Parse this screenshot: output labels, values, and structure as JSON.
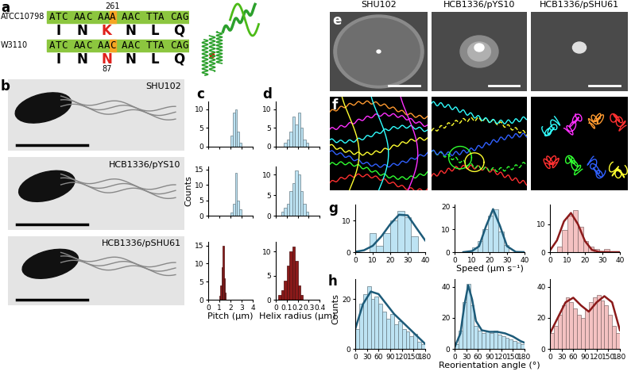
{
  "panel_labels": [
    "a",
    "b",
    "c",
    "d",
    "e",
    "f",
    "g",
    "h"
  ],
  "strains": [
    "SHU102",
    "HCB1336/pYS10",
    "HCB1336/pSHU61"
  ],
  "sequence_alignment": {
    "rows": [
      {
        "strain": "ATCC10798",
        "codons": [
          "ATC",
          "AAC",
          "AAA",
          "AAC",
          "TTA",
          "CAG"
        ],
        "residues": [
          "I",
          "N",
          "K",
          "N",
          "L",
          "Q"
        ],
        "position": 261
      },
      {
        "strain": "W3110",
        "codons": [
          "ATC",
          "AAC",
          "AAC",
          "AAC",
          "TTA",
          "CAG"
        ],
        "residues": [
          "I",
          "N",
          "N",
          "N",
          "L",
          "Q"
        ],
        "position": 87
      }
    ]
  },
  "shared_ylabel": "Counts",
  "chart_data": [
    {
      "type": "histogram",
      "bins": [
        2.0,
        2.2,
        2.4,
        2.6,
        2.8,
        3.0
      ],
      "counts": [
        3,
        9,
        10,
        4,
        1
      ],
      "color": "#bde3f3",
      "xlim": [
        0,
        4
      ],
      "xticks": [
        0,
        1,
        2,
        3,
        4
      ],
      "ylim": [
        0,
        12
      ],
      "yticks": [
        0,
        5,
        10
      ],
      "tick_labels": "y"
    },
    {
      "type": "histogram",
      "bins": [
        2.0,
        2.2,
        2.4,
        2.6,
        2.8,
        3.0
      ],
      "counts": [
        1,
        4,
        14,
        5,
        2
      ],
      "color": "#bde3f3",
      "xlim": [
        0,
        4
      ],
      "xticks": [
        0,
        1,
        2,
        3,
        4
      ],
      "ylim": [
        0,
        16
      ],
      "yticks": [
        0,
        5,
        10,
        15
      ],
      "tick_labels": "y",
      "ylabel": "Counts"
    },
    {
      "type": "histogram",
      "bins": [
        1.0,
        1.1,
        1.2,
        1.3,
        1.4,
        1.5,
        1.6
      ],
      "counts": [
        1,
        4,
        9,
        15,
        6,
        2
      ],
      "color": "#8b1a1a",
      "xlim": [
        0,
        4
      ],
      "xticks": [
        0,
        1,
        2,
        3,
        4
      ],
      "ylim": [
        0,
        16
      ],
      "yticks": [
        0,
        5,
        10,
        15
      ],
      "xlabel": "Pitch (μm)"
    },
    {
      "type": "histogram",
      "bins": [
        0.075,
        0.1,
        0.125,
        0.15,
        0.175,
        0.2,
        0.225,
        0.25,
        0.275,
        0.3
      ],
      "counts": [
        1,
        2,
        4,
        8,
        6,
        9,
        5,
        2,
        1
      ],
      "color": "#bde3f3",
      "xlim": [
        0,
        0.4
      ],
      "xticks": [
        0,
        0.1,
        0.2,
        0.3,
        0.4
      ],
      "ylim": [
        0,
        12
      ],
      "yticks": [
        0,
        5,
        10
      ],
      "tick_labels": "y"
    },
    {
      "type": "histogram",
      "bins": [
        0.05,
        0.075,
        0.1,
        0.125,
        0.15,
        0.175,
        0.2,
        0.225,
        0.25,
        0.275,
        0.3
      ],
      "counts": [
        1,
        2,
        3,
        6,
        8,
        11,
        10,
        6,
        3,
        1
      ],
      "color": "#bde3f3",
      "xlim": [
        0,
        0.4
      ],
      "xticks": [
        0,
        0.1,
        0.2,
        0.3,
        0.4
      ],
      "ylim": [
        0,
        12
      ],
      "yticks": [
        0,
        5,
        10
      ],
      "tick_labels": "y"
    },
    {
      "type": "histogram",
      "bins": [
        0.025,
        0.05,
        0.075,
        0.1,
        0.125,
        0.15,
        0.175,
        0.2,
        0.225,
        0.25
      ],
      "counts": [
        1,
        2,
        4,
        7,
        10,
        11,
        8,
        3,
        1
      ],
      "color": "#8b1a1a",
      "xlim": [
        0,
        0.4
      ],
      "xticks": [
        0,
        0.1,
        0.2,
        0.3,
        0.4
      ],
      "ylim": [
        0,
        12
      ],
      "yticks": [
        0,
        5,
        10
      ],
      "xlabel": "Helix radius (μm)"
    },
    {
      "type": "histogram",
      "bins": [
        8,
        12,
        16,
        20,
        24,
        28,
        32,
        36
      ],
      "counts": [
        6,
        2,
        6,
        10,
        13,
        11,
        5
      ],
      "color": "#bde3f3",
      "xlim": [
        0,
        40
      ],
      "xticks": [
        0,
        10,
        20,
        30,
        40
      ],
      "ylim": [
        0,
        15
      ],
      "yticks": [
        0,
        10
      ],
      "fit": {
        "type": "line",
        "x": [
          0,
          5,
          10,
          15,
          20,
          25,
          30,
          35,
          40
        ],
        "values": [
          0.1,
          0.6,
          2.0,
          5.0,
          8.8,
          11.8,
          11.6,
          7.6,
          3.7
        ],
        "color": "#1d5b79"
      }
    },
    {
      "type": "histogram",
      "bins": [
        10,
        13,
        16,
        19,
        22,
        25,
        28,
        31
      ],
      "counts": [
        2,
        5,
        10,
        16,
        19,
        9,
        3
      ],
      "color": "#bde3f3",
      "xlim": [
        0,
        40
      ],
      "xticks": [
        0,
        10,
        20,
        30,
        40
      ],
      "ylim": [
        0,
        21
      ],
      "yticks": [
        0,
        10,
        20
      ],
      "xlabel": "Speed (μm s⁻¹)",
      "fit": {
        "type": "line",
        "x": [
          5,
          10,
          14,
          18,
          22,
          26,
          30,
          35,
          40
        ],
        "values": [
          0,
          0.5,
          2.6,
          11.5,
          19,
          11.5,
          2.6,
          0.1,
          0
        ],
        "color": "#1d5b79"
      }
    },
    {
      "type": "histogram",
      "bins": [
        4,
        7,
        10,
        13,
        16,
        19,
        22,
        25,
        28,
        31,
        34
      ],
      "counts": [
        2,
        8,
        13,
        15,
        9,
        4,
        2,
        1,
        0,
        1
      ],
      "color": "#f4c2c2",
      "xlim": [
        0,
        40
      ],
      "xticks": [
        0,
        10,
        20,
        30,
        40
      ],
      "ylim": [
        0,
        17
      ],
      "yticks": [
        0,
        10
      ],
      "fit": {
        "type": "line",
        "x": [
          0,
          4,
          8,
          12,
          16,
          20,
          24,
          28,
          32,
          40
        ],
        "values": [
          0.6,
          4.2,
          11,
          14,
          10,
          4,
          0.8,
          0.1,
          0,
          0
        ],
        "color": "#8b1a1a"
      }
    },
    {
      "type": "histogram",
      "bins": [
        0,
        10,
        20,
        30,
        40,
        50,
        60,
        70,
        80,
        90,
        100,
        110,
        120,
        130,
        140,
        150,
        160,
        170,
        180
      ],
      "counts": [
        8,
        18,
        22,
        25,
        20,
        21,
        18,
        15,
        12,
        14,
        10,
        11,
        8,
        7,
        5,
        6,
        3,
        2
      ],
      "color": "#bde3f3",
      "xlim": [
        0,
        180
      ],
      "xticks": [
        0,
        30,
        60,
        90,
        120,
        150,
        180
      ],
      "ylim": [
        0,
        28
      ],
      "yticks": [
        0,
        20
      ],
      "fit": {
        "type": "line",
        "x": [
          0,
          20,
          40,
          60,
          80,
          100,
          120,
          140,
          160,
          180
        ],
        "values": [
          8,
          18,
          23,
          22,
          18,
          14,
          11,
          8,
          5,
          2
        ],
        "color": "#1d5b79"
      }
    },
    {
      "type": "histogram",
      "bins": [
        0,
        10,
        20,
        30,
        40,
        50,
        60,
        70,
        80,
        90,
        100,
        110,
        120,
        130,
        140,
        150,
        160,
        170,
        180
      ],
      "counts": [
        3,
        12,
        30,
        42,
        28,
        15,
        12,
        10,
        11,
        10,
        12,
        9,
        8,
        7,
        6,
        5,
        4,
        3
      ],
      "color": "#bde3f3",
      "xlim": [
        0,
        180
      ],
      "xticks": [
        0,
        30,
        60,
        90,
        120,
        150,
        180
      ],
      "ylim": [
        0,
        45
      ],
      "yticks": [
        0,
        20,
        40
      ],
      "xlabel": "Reorientation angle (°)",
      "fit": {
        "type": "line",
        "x": [
          0,
          15,
          25,
          35,
          45,
          55,
          70,
          90,
          110,
          130,
          150,
          170,
          180
        ],
        "values": [
          1,
          10,
          28,
          41,
          32,
          18,
          12,
          11,
          11,
          10,
          8,
          5,
          4
        ],
        "color": "#1d5b79"
      }
    },
    {
      "type": "histogram",
      "bins": [
        0,
        10,
        20,
        30,
        40,
        50,
        60,
        70,
        80,
        90,
        100,
        110,
        120,
        130,
        140,
        150,
        160,
        170,
        180
      ],
      "counts": [
        10,
        15,
        22,
        28,
        33,
        30,
        26,
        22,
        20,
        25,
        30,
        33,
        35,
        31,
        28,
        22,
        15,
        10
      ],
      "color": "#f4c2c2",
      "xlim": [
        0,
        180
      ],
      "xticks": [
        0,
        30,
        60,
        90,
        120,
        150,
        180
      ],
      "ylim": [
        0,
        45
      ],
      "yticks": [
        0,
        20,
        40
      ],
      "fit": {
        "type": "line",
        "x": [
          0,
          20,
          40,
          60,
          80,
          100,
          120,
          140,
          160,
          180
        ],
        "values": [
          10,
          20,
          30,
          33,
          28,
          24,
          30,
          34,
          30,
          12
        ],
        "color": "#8b1a1a"
      }
    }
  ]
}
